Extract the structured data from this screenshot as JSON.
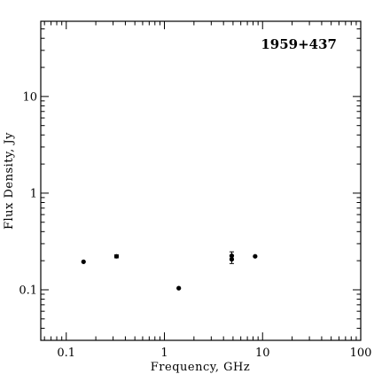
{
  "chart_data": {
    "type": "scatter",
    "title": "1959+437",
    "xlabel": "Frequency, GHz",
    "ylabel": "Flux Density, Jy",
    "xscale": "log",
    "yscale": "log",
    "xlim": [
      0.055,
      100
    ],
    "ylim": [
      0.03,
      60
    ],
    "grid": false,
    "x_ticks": [
      {
        "value": 0.1,
        "label": "0.1"
      },
      {
        "value": 1,
        "label": "1"
      },
      {
        "value": 10,
        "label": "10"
      },
      {
        "value": 100,
        "label": "100"
      }
    ],
    "y_ticks": [
      {
        "value": 0.1,
        "label": "0.1"
      },
      {
        "value": 1,
        "label": "1"
      },
      {
        "value": 10,
        "label": "10"
      }
    ],
    "points": [
      {
        "x": 0.15,
        "y": 0.195
      },
      {
        "x": 0.325,
        "y": 0.222,
        "yerr": 0.008
      },
      {
        "x": 1.4,
        "y": 0.104
      },
      {
        "x": 4.85,
        "y": 0.225,
        "yerr": 0.022
      },
      {
        "x": 4.85,
        "y": 0.207,
        "yerr": 0.02
      },
      {
        "x": 8.4,
        "y": 0.222
      }
    ]
  }
}
